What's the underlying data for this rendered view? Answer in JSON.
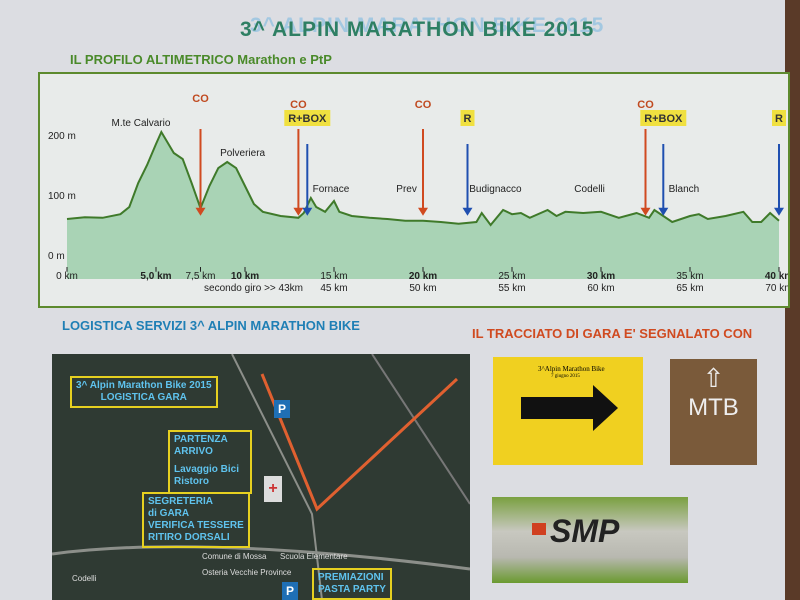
{
  "poster": {
    "title": "3^ ALPIN MARATHON BIKE 2015",
    "subtitle": "IL PROFILO ALTIMETRICO Marathon e PtP",
    "logistics_heading": "LOGISTICA SERVIZI 3^ ALPIN MARATHON BIKE",
    "route_heading": "IL TRACCIATO DI GARA  E' SEGNALATO CON"
  },
  "chart_data": {
    "type": "area",
    "xlim": [
      0,
      40
    ],
    "ylim": [
      0,
      230
    ],
    "y_ticks": [
      {
        "v": 0,
        "label": "0 m"
      },
      {
        "v": 100,
        "label": "100 m"
      },
      {
        "v": 200,
        "label": "200 m"
      }
    ],
    "x_ticks": [
      {
        "v": 0,
        "label": "0 km",
        "label2": ""
      },
      {
        "v": 5,
        "label": "5,0 km",
        "label2": ""
      },
      {
        "v": 7.5,
        "label": "7,5 km",
        "label2": ""
      },
      {
        "v": 10,
        "label": "10 km",
        "label2": "secondo giro >> 43km"
      },
      {
        "v": 15,
        "label": "15 km",
        "label2": "45 km"
      },
      {
        "v": 20,
        "label": "20 km",
        "label2": "50 km"
      },
      {
        "v": 25,
        "label": "25 km",
        "label2": "55 km"
      },
      {
        "v": 30,
        "label": "30 km",
        "label2": "60 km"
      },
      {
        "v": 35,
        "label": "35 km",
        "label2": "65 km"
      },
      {
        "v": 40,
        "label": "40 km",
        "label2": "70 km"
      }
    ],
    "profile_km": [
      0,
      1,
      2,
      3,
      3.5,
      4,
      4.5,
      5,
      5.3,
      5.6,
      6,
      6.5,
      7,
      7.5,
      8,
      8.5,
      9,
      9.5,
      10,
      10.5,
      11,
      12,
      13,
      13.3,
      13.7,
      14,
      14.5,
      15,
      15.3,
      16,
      17,
      18,
      19,
      20,
      21,
      22,
      23,
      23.3,
      23.8,
      24.5,
      25,
      25.5,
      26,
      27,
      27.5,
      28,
      29,
      30,
      31,
      32,
      32.7,
      33,
      34,
      35,
      35.5,
      36,
      37,
      38,
      38.5,
      39,
      39.5,
      40
    ],
    "profile_m": [
      60,
      63,
      62,
      68,
      80,
      120,
      150,
      185,
      205,
      190,
      170,
      160,
      120,
      78,
      115,
      145,
      155,
      145,
      115,
      85,
      72,
      65,
      62,
      70,
      95,
      80,
      72,
      90,
      72,
      65,
      62,
      60,
      57,
      57,
      55,
      52,
      55,
      70,
      50,
      75,
      68,
      70,
      62,
      75,
      65,
      72,
      70,
      72,
      62,
      70,
      62,
      75,
      55,
      65,
      68,
      60,
      65,
      72,
      55,
      55,
      70,
      57
    ],
    "place_labels": [
      {
        "km": 2.5,
        "m": 215,
        "text": "M.te Calvario"
      },
      {
        "km": 8.6,
        "m": 165,
        "text": "Polveriera"
      },
      {
        "km": 13.8,
        "m": 105,
        "text": "Fornace"
      },
      {
        "km": 18.5,
        "m": 105,
        "text": "Prev"
      },
      {
        "km": 22.6,
        "m": 105,
        "text": "Budignacco"
      },
      {
        "km": 28.5,
        "m": 105,
        "text": "Codelli"
      },
      {
        "km": 33.8,
        "m": 105,
        "text": "Blanch"
      }
    ],
    "markers": [
      {
        "km": 7.5,
        "type": "CO",
        "color": "#d04a20"
      },
      {
        "km": 13.0,
        "type": "CO",
        "color": "#d04a20"
      },
      {
        "km": 13.5,
        "type": "R+BOX",
        "color": "#1f4fb0"
      },
      {
        "km": 20.0,
        "type": "CO",
        "color": "#d04a20"
      },
      {
        "km": 22.5,
        "type": "R",
        "color": "#1f4fb0"
      },
      {
        "km": 32.5,
        "type": "CO",
        "color": "#d04a20"
      },
      {
        "km": 33.5,
        "type": "R+BOX",
        "color": "#1f4fb0"
      },
      {
        "km": 40.0,
        "type": "R",
        "color": "#1f4fb0"
      }
    ],
    "line_color": "#3f7a2a",
    "fill_color": "#a9d3b5"
  },
  "map": {
    "title_label": "3^ Alpin Marathon Bike 2015\nLOGISTICA GARA",
    "start_label": "PARTENZA\nARRIVO",
    "wash_label": "Lavaggio Bici\nRistoro",
    "office_label": "SEGRETERIA\ndi GARA\nVERIFICA TESSERE\nRITIRO DORSALI",
    "awards_label": "PREMIAZIONI\nPASTA PARTY",
    "parking": "P",
    "places": [
      "Comune di Mossa",
      "Scuola Elementare",
      "Osteria Vecchie Province",
      "Codelli"
    ]
  },
  "signs": {
    "sign_title": "3^Alpin Marathon Bike",
    "sign_date": "7 giugno 2015",
    "chalk_text": "MTB",
    "sponsor": "SMP"
  }
}
